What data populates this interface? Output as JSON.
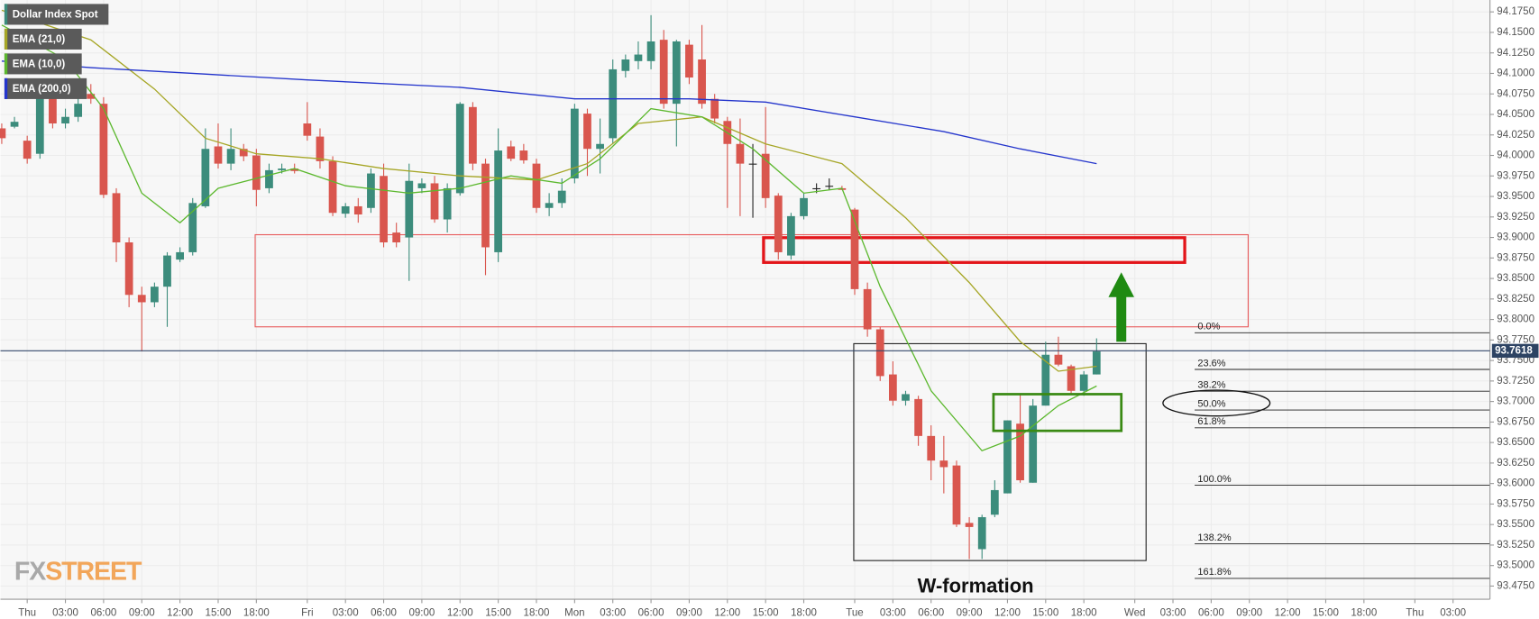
{
  "chart_data": {
    "type": "candlestick",
    "xlim": [
      -2.1,
      114.9
    ],
    "ylim": [
      93.459,
      94.1895
    ],
    "grid": true,
    "xticks": [
      {
        "value": 0,
        "label": "Thu"
      },
      {
        "value": 3,
        "label": "03:00"
      },
      {
        "value": 6,
        "label": "06:00"
      },
      {
        "value": 9,
        "label": "09:00"
      },
      {
        "value": 12,
        "label": "12:00"
      },
      {
        "value": 15,
        "label": "15:00"
      },
      {
        "value": 18,
        "label": "18:00"
      },
      {
        "value": 22,
        "label": "Fri"
      },
      {
        "value": 25,
        "label": "03:00"
      },
      {
        "value": 28,
        "label": "06:00"
      },
      {
        "value": 31,
        "label": "09:00"
      },
      {
        "value": 34,
        "label": "12:00"
      },
      {
        "value": 37,
        "label": "15:00"
      },
      {
        "value": 40,
        "label": "18:00"
      },
      {
        "value": 43,
        "label": "Mon"
      },
      {
        "value": 46,
        "label": "03:00"
      },
      {
        "value": 49,
        "label": "06:00"
      },
      {
        "value": 52,
        "label": "09:00"
      },
      {
        "value": 55,
        "label": "12:00"
      },
      {
        "value": 58,
        "label": "15:00"
      },
      {
        "value": 61,
        "label": "18:00"
      },
      {
        "value": 65,
        "label": "Tue"
      },
      {
        "value": 68,
        "label": "03:00"
      },
      {
        "value": 71,
        "label": "06:00"
      },
      {
        "value": 74,
        "label": "09:00"
      },
      {
        "value": 77,
        "label": "12:00"
      },
      {
        "value": 80,
        "label": "15:00"
      },
      {
        "value": 83,
        "label": "18:00"
      },
      {
        "value": 87,
        "label": "Wed"
      },
      {
        "value": 90,
        "label": "03:00"
      },
      {
        "value": 93,
        "label": "06:00"
      },
      {
        "value": 96,
        "label": "09:00"
      },
      {
        "value": 99,
        "label": "12:00"
      },
      {
        "value": 102,
        "label": "15:00"
      },
      {
        "value": 105,
        "label": "18:00"
      },
      {
        "value": 109,
        "label": "Thu"
      },
      {
        "value": 112,
        "label": "03:00"
      }
    ],
    "yticks": [
      {
        "value": 93.475,
        "label": "93.4750"
      },
      {
        "value": 93.5,
        "label": "93.5000"
      },
      {
        "value": 93.525,
        "label": "93.5250"
      },
      {
        "value": 93.55,
        "label": "93.5500"
      },
      {
        "value": 93.575,
        "label": "93.5750"
      },
      {
        "value": 93.6,
        "label": "93.6000"
      },
      {
        "value": 93.625,
        "label": "93.6250"
      },
      {
        "value": 93.65,
        "label": "93.6500"
      },
      {
        "value": 93.675,
        "label": "93.6750"
      },
      {
        "value": 93.7,
        "label": "93.7000"
      },
      {
        "value": 93.725,
        "label": "93.7250"
      },
      {
        "value": 93.75,
        "label": "93.7500"
      },
      {
        "value": 93.775,
        "label": "93.7750"
      },
      {
        "value": 93.8,
        "label": "93.8000"
      },
      {
        "value": 93.825,
        "label": "93.8250"
      },
      {
        "value": 93.85,
        "label": "93.8500"
      },
      {
        "value": 93.875,
        "label": "93.8750"
      },
      {
        "value": 93.9,
        "label": "93.9000"
      },
      {
        "value": 93.925,
        "label": "93.9250"
      },
      {
        "value": 93.95,
        "label": "93.9500"
      },
      {
        "value": 93.975,
        "label": "93.9750"
      },
      {
        "value": 94.0,
        "label": "94.0000"
      },
      {
        "value": 94.025,
        "label": "94.0250"
      },
      {
        "value": 94.05,
        "label": "94.0500"
      },
      {
        "value": 94.075,
        "label": "94.0750"
      },
      {
        "value": 94.1,
        "label": "94.1000"
      },
      {
        "value": 94.125,
        "label": "94.1250"
      },
      {
        "value": 94.15,
        "label": "94.1500"
      },
      {
        "value": 94.175,
        "label": "94.1750"
      }
    ],
    "series": [
      {
        "name": "Dollar Index Spot",
        "type": "candlestick",
        "color": "#3c8c7c",
        "up_color": "#3c8c7c",
        "down_color": "#d9564e",
        "flat_color": "#222222",
        "x": [
          -2,
          -1,
          0,
          1,
          2,
          3,
          4,
          5,
          6,
          7,
          8,
          9,
          10,
          11,
          12,
          13,
          14,
          15,
          16,
          17,
          18,
          19,
          20,
          21,
          22,
          23,
          24,
          25,
          26,
          27,
          28,
          29,
          30,
          31,
          32,
          33,
          34,
          35,
          36,
          37,
          38,
          39,
          40,
          41,
          42,
          43,
          44,
          45,
          46,
          47,
          48,
          49,
          50,
          51,
          52,
          53,
          54,
          55,
          56,
          57,
          58,
          59,
          60,
          61,
          62,
          63,
          64,
          65,
          66,
          67,
          68,
          69,
          70,
          71,
          72,
          73,
          74,
          75,
          76,
          77,
          78,
          79,
          80,
          81,
          82,
          83,
          84
        ],
        "open": [
          94.033,
          94.035,
          94.018,
          94.002,
          94.075,
          94.039,
          94.047,
          94.075,
          94.063,
          93.954,
          93.894,
          93.83,
          93.821,
          93.84,
          93.873,
          93.882,
          93.938,
          94.011,
          93.99,
          94.008,
          94.0,
          93.96,
          93.982,
          93.984,
          94.039,
          94.023,
          93.993,
          93.929,
          93.938,
          93.936,
          93.975,
          93.906,
          93.9,
          93.96,
          93.966,
          93.922,
          93.954,
          94.059,
          93.99,
          93.882,
          94.011,
          94.006,
          93.99,
          93.936,
          93.942,
          93.972,
          94.051,
          94.008,
          94.021,
          94.103,
          94.115,
          94.115,
          94.141,
          94.063,
          94.135,
          94.117,
          94.069,
          94.042,
          94.014,
          93.99,
          94.002,
          93.951,
          93.878,
          93.926,
          93.96,
          93.963,
          93.96,
          93.934,
          93.837,
          93.788,
          93.733,
          93.701,
          93.703,
          93.658,
          93.628,
          93.622,
          93.552,
          93.52,
          93.562,
          93.588,
          93.673,
          93.601,
          93.695,
          93.757,
          93.743,
          93.713,
          93.733
        ],
        "high": [
          94.039,
          94.047,
          94.024,
          94.087,
          94.081,
          94.057,
          94.081,
          94.087,
          94.071,
          93.96,
          93.9,
          93.84,
          93.845,
          93.882,
          93.888,
          93.948,
          94.033,
          94.039,
          94.033,
          94.014,
          94.008,
          93.99,
          93.99,
          93.99,
          94.065,
          94.033,
          93.999,
          93.942,
          93.948,
          93.984,
          93.99,
          93.918,
          93.99,
          93.972,
          93.975,
          93.966,
          94.065,
          94.065,
          93.996,
          94.033,
          94.018,
          94.014,
          93.996,
          93.954,
          93.972,
          94.063,
          94.057,
          94.045,
          94.117,
          94.123,
          94.139,
          94.171,
          94.153,
          94.141,
          94.141,
          94.159,
          94.075,
          94.047,
          94.045,
          94.014,
          94.059,
          93.954,
          93.93,
          93.954,
          93.966,
          93.972,
          93.963,
          93.936,
          93.845,
          93.791,
          93.749,
          93.713,
          93.707,
          93.671,
          93.658,
          93.628,
          93.559,
          93.562,
          93.604,
          93.677,
          93.709,
          93.703,
          93.773,
          93.779,
          93.745,
          93.737,
          93.777
        ],
        "low": [
          94.014,
          94.033,
          93.99,
          93.996,
          94.033,
          94.033,
          94.041,
          94.063,
          93.948,
          93.87,
          93.815,
          93.761,
          93.815,
          93.791,
          93.87,
          93.878,
          93.936,
          93.984,
          93.982,
          93.993,
          93.938,
          93.954,
          93.978,
          93.978,
          94.018,
          93.984,
          93.926,
          93.924,
          93.918,
          93.93,
          93.888,
          93.888,
          93.847,
          93.954,
          93.918,
          93.906,
          93.951,
          93.982,
          93.854,
          93.87,
          93.993,
          93.99,
          93.93,
          93.926,
          93.936,
          93.966,
          93.975,
          93.978,
          94.014,
          94.095,
          94.105,
          94.105,
          94.057,
          94.011,
          94.087,
          94.057,
          94.039,
          93.936,
          93.926,
          93.924,
          93.936,
          93.873,
          93.873,
          93.922,
          93.954,
          93.958,
          93.958,
          93.83,
          93.779,
          93.725,
          93.695,
          93.695,
          93.646,
          93.604,
          93.588,
          93.547,
          93.508,
          93.508,
          93.559,
          93.588,
          93.601,
          93.601,
          93.695,
          93.743,
          93.709,
          93.707,
          93.733
        ],
        "close": [
          94.021,
          94.041,
          93.996,
          94.075,
          94.039,
          94.047,
          94.063,
          94.069,
          93.952,
          93.894,
          93.83,
          93.821,
          93.84,
          93.878,
          93.882,
          93.942,
          94.008,
          93.99,
          94.008,
          93.999,
          93.958,
          93.982,
          93.984,
          93.981,
          94.024,
          93.993,
          93.93,
          93.938,
          93.928,
          93.978,
          93.894,
          93.894,
          93.969,
          93.966,
          93.922,
          93.96,
          94.063,
          93.99,
          93.888,
          94.006,
          93.996,
          93.994,
          93.936,
          93.942,
          93.957,
          94.057,
          94.008,
          94.014,
          94.105,
          94.117,
          94.123,
          94.139,
          94.063,
          94.139,
          94.095,
          94.063,
          94.045,
          94.014,
          93.99,
          93.99,
          93.948,
          93.882,
          93.926,
          93.948,
          93.96,
          93.963,
          93.958,
          93.837,
          93.788,
          93.731,
          93.701,
          93.709,
          93.658,
          93.628,
          93.62,
          93.55,
          93.547,
          93.559,
          93.592,
          93.677,
          93.604,
          93.695,
          93.757,
          93.745,
          93.713,
          93.733,
          93.761
        ]
      },
      {
        "name": "EMA (21,0)",
        "type": "line",
        "color": "#a6a626",
        "x": [
          -2,
          5,
          10,
          14,
          18,
          23,
          28,
          34,
          40,
          44,
          48,
          53,
          58,
          64,
          69,
          74,
          78,
          81,
          84
        ],
        "values": [
          94.177,
          94.141,
          94.081,
          94.021,
          94.002,
          93.996,
          93.984,
          93.975,
          93.97,
          93.99,
          94.039,
          94.047,
          94.014,
          93.99,
          93.924,
          93.845,
          93.773,
          93.737,
          93.743
        ]
      },
      {
        "name": "EMA (10,0)",
        "type": "line",
        "color": "#5cb82e",
        "x": [
          -2,
          3,
          6,
          9,
          12,
          15,
          18,
          21,
          25,
          30,
          34,
          38,
          42,
          45,
          49,
          53,
          57,
          61,
          64,
          67,
          71,
          75,
          78,
          81,
          84
        ],
        "values": [
          94.159,
          94.117,
          94.057,
          93.954,
          93.918,
          93.96,
          93.972,
          93.984,
          93.963,
          93.954,
          93.96,
          93.975,
          93.966,
          93.996,
          94.057,
          94.047,
          94.008,
          93.954,
          93.96,
          93.84,
          93.713,
          93.64,
          93.658,
          93.695,
          93.719
        ]
      },
      {
        "name": "EMA (200,0)",
        "type": "line",
        "color": "#2435cc",
        "x": [
          -2,
          5,
          13,
          22,
          34,
          43,
          52,
          58,
          65,
          72,
          78,
          84
        ],
        "values": [
          94.115,
          94.107,
          94.1,
          94.092,
          94.083,
          94.069,
          94.069,
          94.065,
          94.047,
          94.029,
          94.008,
          93.99
        ]
      }
    ],
    "annotations": {
      "pattern": "W-formation",
      "fib_levels": [
        "0.0%",
        "23.6%",
        "38.2%",
        "50.0%",
        "61.8%",
        "100.0%",
        "138.2%",
        "161.8%"
      ],
      "current_price": {
        "value": 93.7618,
        "label": "93.7618"
      }
    },
    "watermark": [
      "FX",
      "STREET"
    ]
  }
}
